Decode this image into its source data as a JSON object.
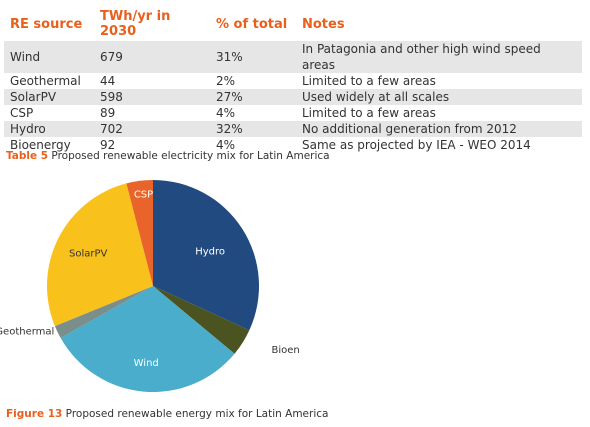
{
  "table": {
    "headers": [
      "RE source",
      "TWh/yr in 2030",
      "% of total",
      "Notes"
    ],
    "rows": [
      [
        "Wind",
        "679",
        "31%",
        "In Patagonia and other high wind speed areas"
      ],
      [
        "Geothermal",
        "44",
        "2%",
        "Limited to a few areas"
      ],
      [
        "SolarPV",
        "598",
        "27%",
        "Used widely at all scales"
      ],
      [
        "CSP",
        "89",
        "4%",
        "Limited to a few areas"
      ],
      [
        "Hydro",
        "702",
        "32%",
        "No additional generation from 2012"
      ],
      [
        "Bioenergy",
        "92",
        "4%",
        "Same as projected by IEA - WEO 2014"
      ]
    ]
  },
  "table_caption": {
    "label": "Table 5",
    "text": " Proposed renewable electricity mix for Latin America"
  },
  "figure_caption": {
    "label": "Figure 13",
    "text": " Proposed renewable energy mix for Latin America"
  },
  "colors": {
    "accent": "#e8601c",
    "row_band": "#e6e6e6"
  },
  "chart_data": {
    "type": "pie",
    "slices": [
      {
        "label": "Hydro",
        "value": 702,
        "color": "#204a80",
        "label_color": "#ffffff"
      },
      {
        "label": "Bioenergy",
        "value": 92,
        "color": "#4b5420",
        "label_color": "#333333"
      },
      {
        "label": "Wind",
        "value": 679,
        "color": "#4aadcc",
        "label_color": "#ffffff"
      },
      {
        "label": "Geothermal",
        "value": 44,
        "color": "#7a8f8c",
        "label_color": "#333333"
      },
      {
        "label": "SolarPV",
        "value": 598,
        "color": "#f8c11b",
        "label_color": "#333333"
      },
      {
        "label": "CSP",
        "value": 89,
        "color": "#e8642a",
        "label_color": "#ffffff"
      }
    ]
  }
}
